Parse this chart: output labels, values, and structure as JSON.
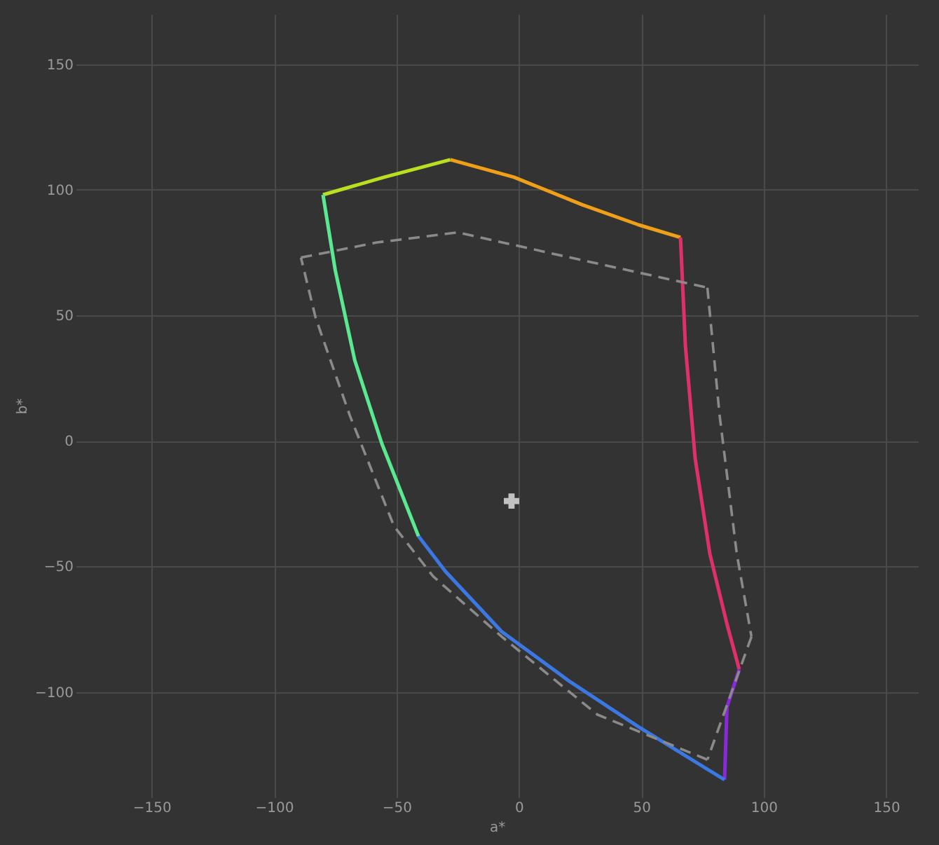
{
  "chart_data": {
    "type": "line",
    "xlabel": "a*",
    "ylabel": "b*",
    "xlim": [
      -181,
      163
    ],
    "ylim": [
      -142,
      170
    ],
    "xticks": [
      -150,
      -100,
      -50,
      0,
      50,
      100,
      150
    ],
    "yticks": [
      -100,
      -50,
      0,
      50,
      100,
      150
    ],
    "grid": true,
    "series": [
      {
        "color": "#b8e020",
        "x": [
          -80,
          -55,
          -28
        ],
        "values": [
          98,
          105,
          112
        ]
      },
      {
        "color": "#f0a018",
        "x": [
          -28,
          -2,
          26,
          49,
          66
        ],
        "values": [
          112,
          105,
          94,
          86,
          81
        ]
      },
      {
        "color": "#e0306a",
        "x": [
          66,
          68,
          72,
          78,
          85,
          90
        ],
        "values": [
          81,
          38,
          -7,
          -45,
          -73,
          -91
        ]
      },
      {
        "color": "#8a28dc",
        "x": [
          90,
          85,
          84
        ],
        "values": [
          -91,
          -106,
          -135
        ]
      },
      {
        "color": "#3c78e4",
        "x": [
          84,
          49,
          21,
          -7,
          -30,
          -41
        ],
        "values": [
          -135,
          -114,
          -96,
          -76,
          -52,
          -38
        ]
      },
      {
        "color": "#5ae890",
        "x": [
          -41,
          -56,
          -67,
          -75,
          -80
        ],
        "values": [
          -38,
          -1,
          32,
          68,
          98
        ]
      },
      {
        "color": "#8a8a8a",
        "line_style": "dashed",
        "x": [
          -89,
          -58,
          -25,
          21,
          77
        ],
        "values": [
          73,
          79,
          83,
          73,
          61
        ]
      },
      {
        "color": "#8a8a8a",
        "line_style": "dashed",
        "x": [
          77,
          82,
          89,
          95
        ],
        "values": [
          61,
          10,
          -45,
          -78
        ]
      },
      {
        "color": "#8a8a8a",
        "line_style": "dashed",
        "x": [
          95,
          77
        ],
        "values": [
          -78,
          -127
        ]
      },
      {
        "color": "#8a8a8a",
        "line_style": "dashed",
        "x": [
          77,
          32,
          -7,
          -35,
          -51,
          -69,
          -83,
          -89
        ],
        "values": [
          -127,
          -109,
          -78,
          -54,
          -34,
          10,
          49,
          73
        ]
      },
      {
        "type": "scatter",
        "marker": "cross",
        "color": "#ffffff",
        "x": [
          -3
        ],
        "values": [
          -24
        ]
      }
    ]
  }
}
